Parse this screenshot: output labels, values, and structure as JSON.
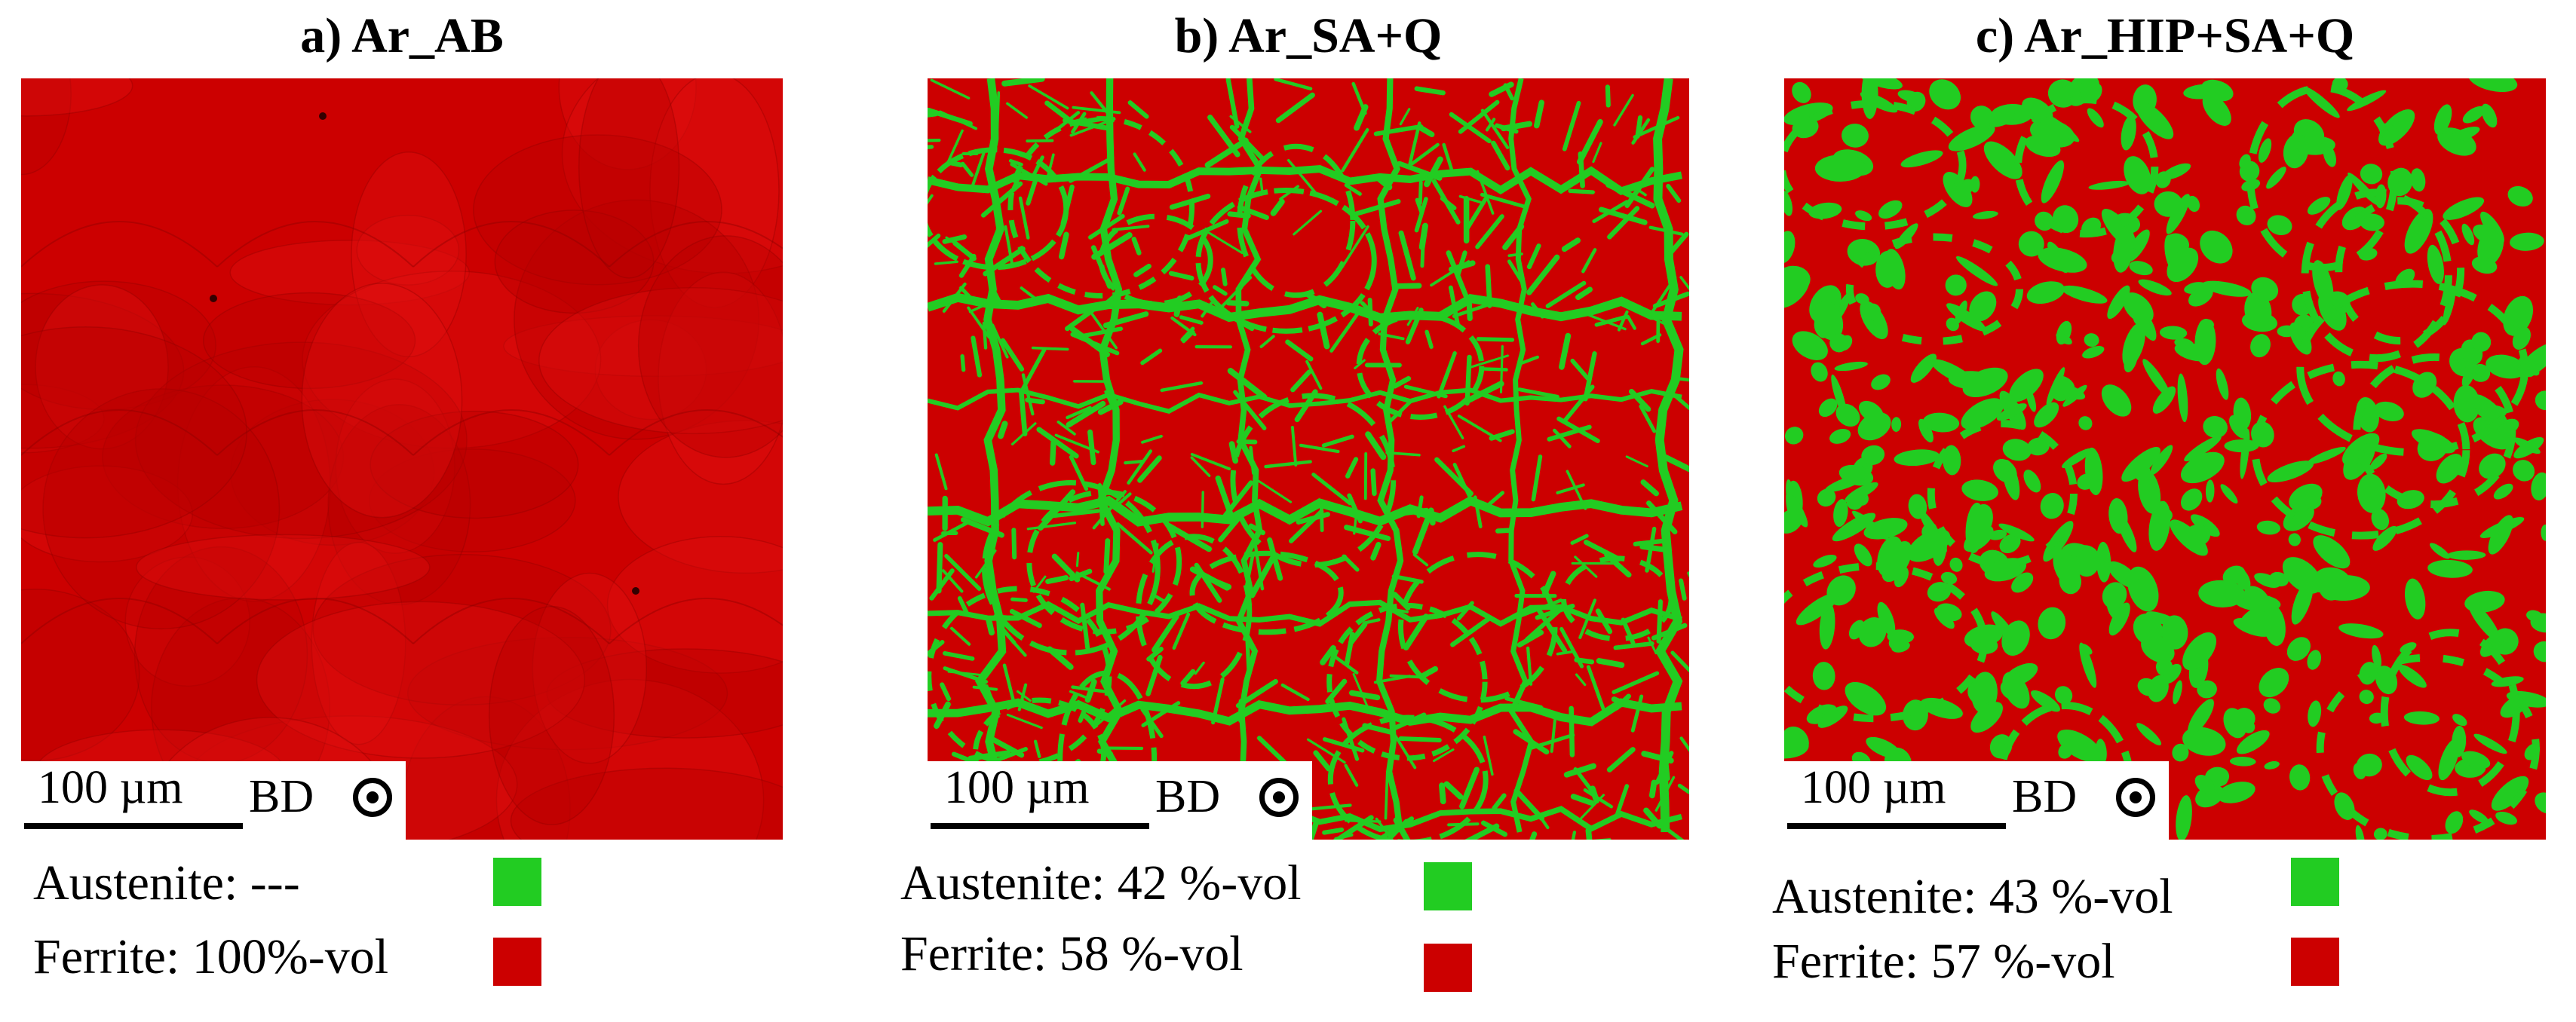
{
  "panels": [
    {
      "title": "a) Ar_AB",
      "scale_label": "100 µm",
      "bd_label": "BD",
      "austenite": "Austenite: ---",
      "ferrite": "Ferrite: 100%-vol"
    },
    {
      "title": "b) Ar_SA+Q",
      "scale_label": "100 µm",
      "bd_label": "BD",
      "austenite": "Austenite: 42 %-vol",
      "ferrite": "Ferrite: 58 %-vol"
    },
    {
      "title": "c) Ar_HIP+SA+Q",
      "scale_label": "100 µm",
      "bd_label": "BD",
      "austenite": "Austenite: 43 %-vol",
      "ferrite": "Ferrite: 57 %-vol"
    }
  ],
  "colors": {
    "austenite": "#22cc22",
    "ferrite": "#cc0000",
    "ferrite_dark": "#b80000",
    "ferrite_light": "#e01010"
  }
}
